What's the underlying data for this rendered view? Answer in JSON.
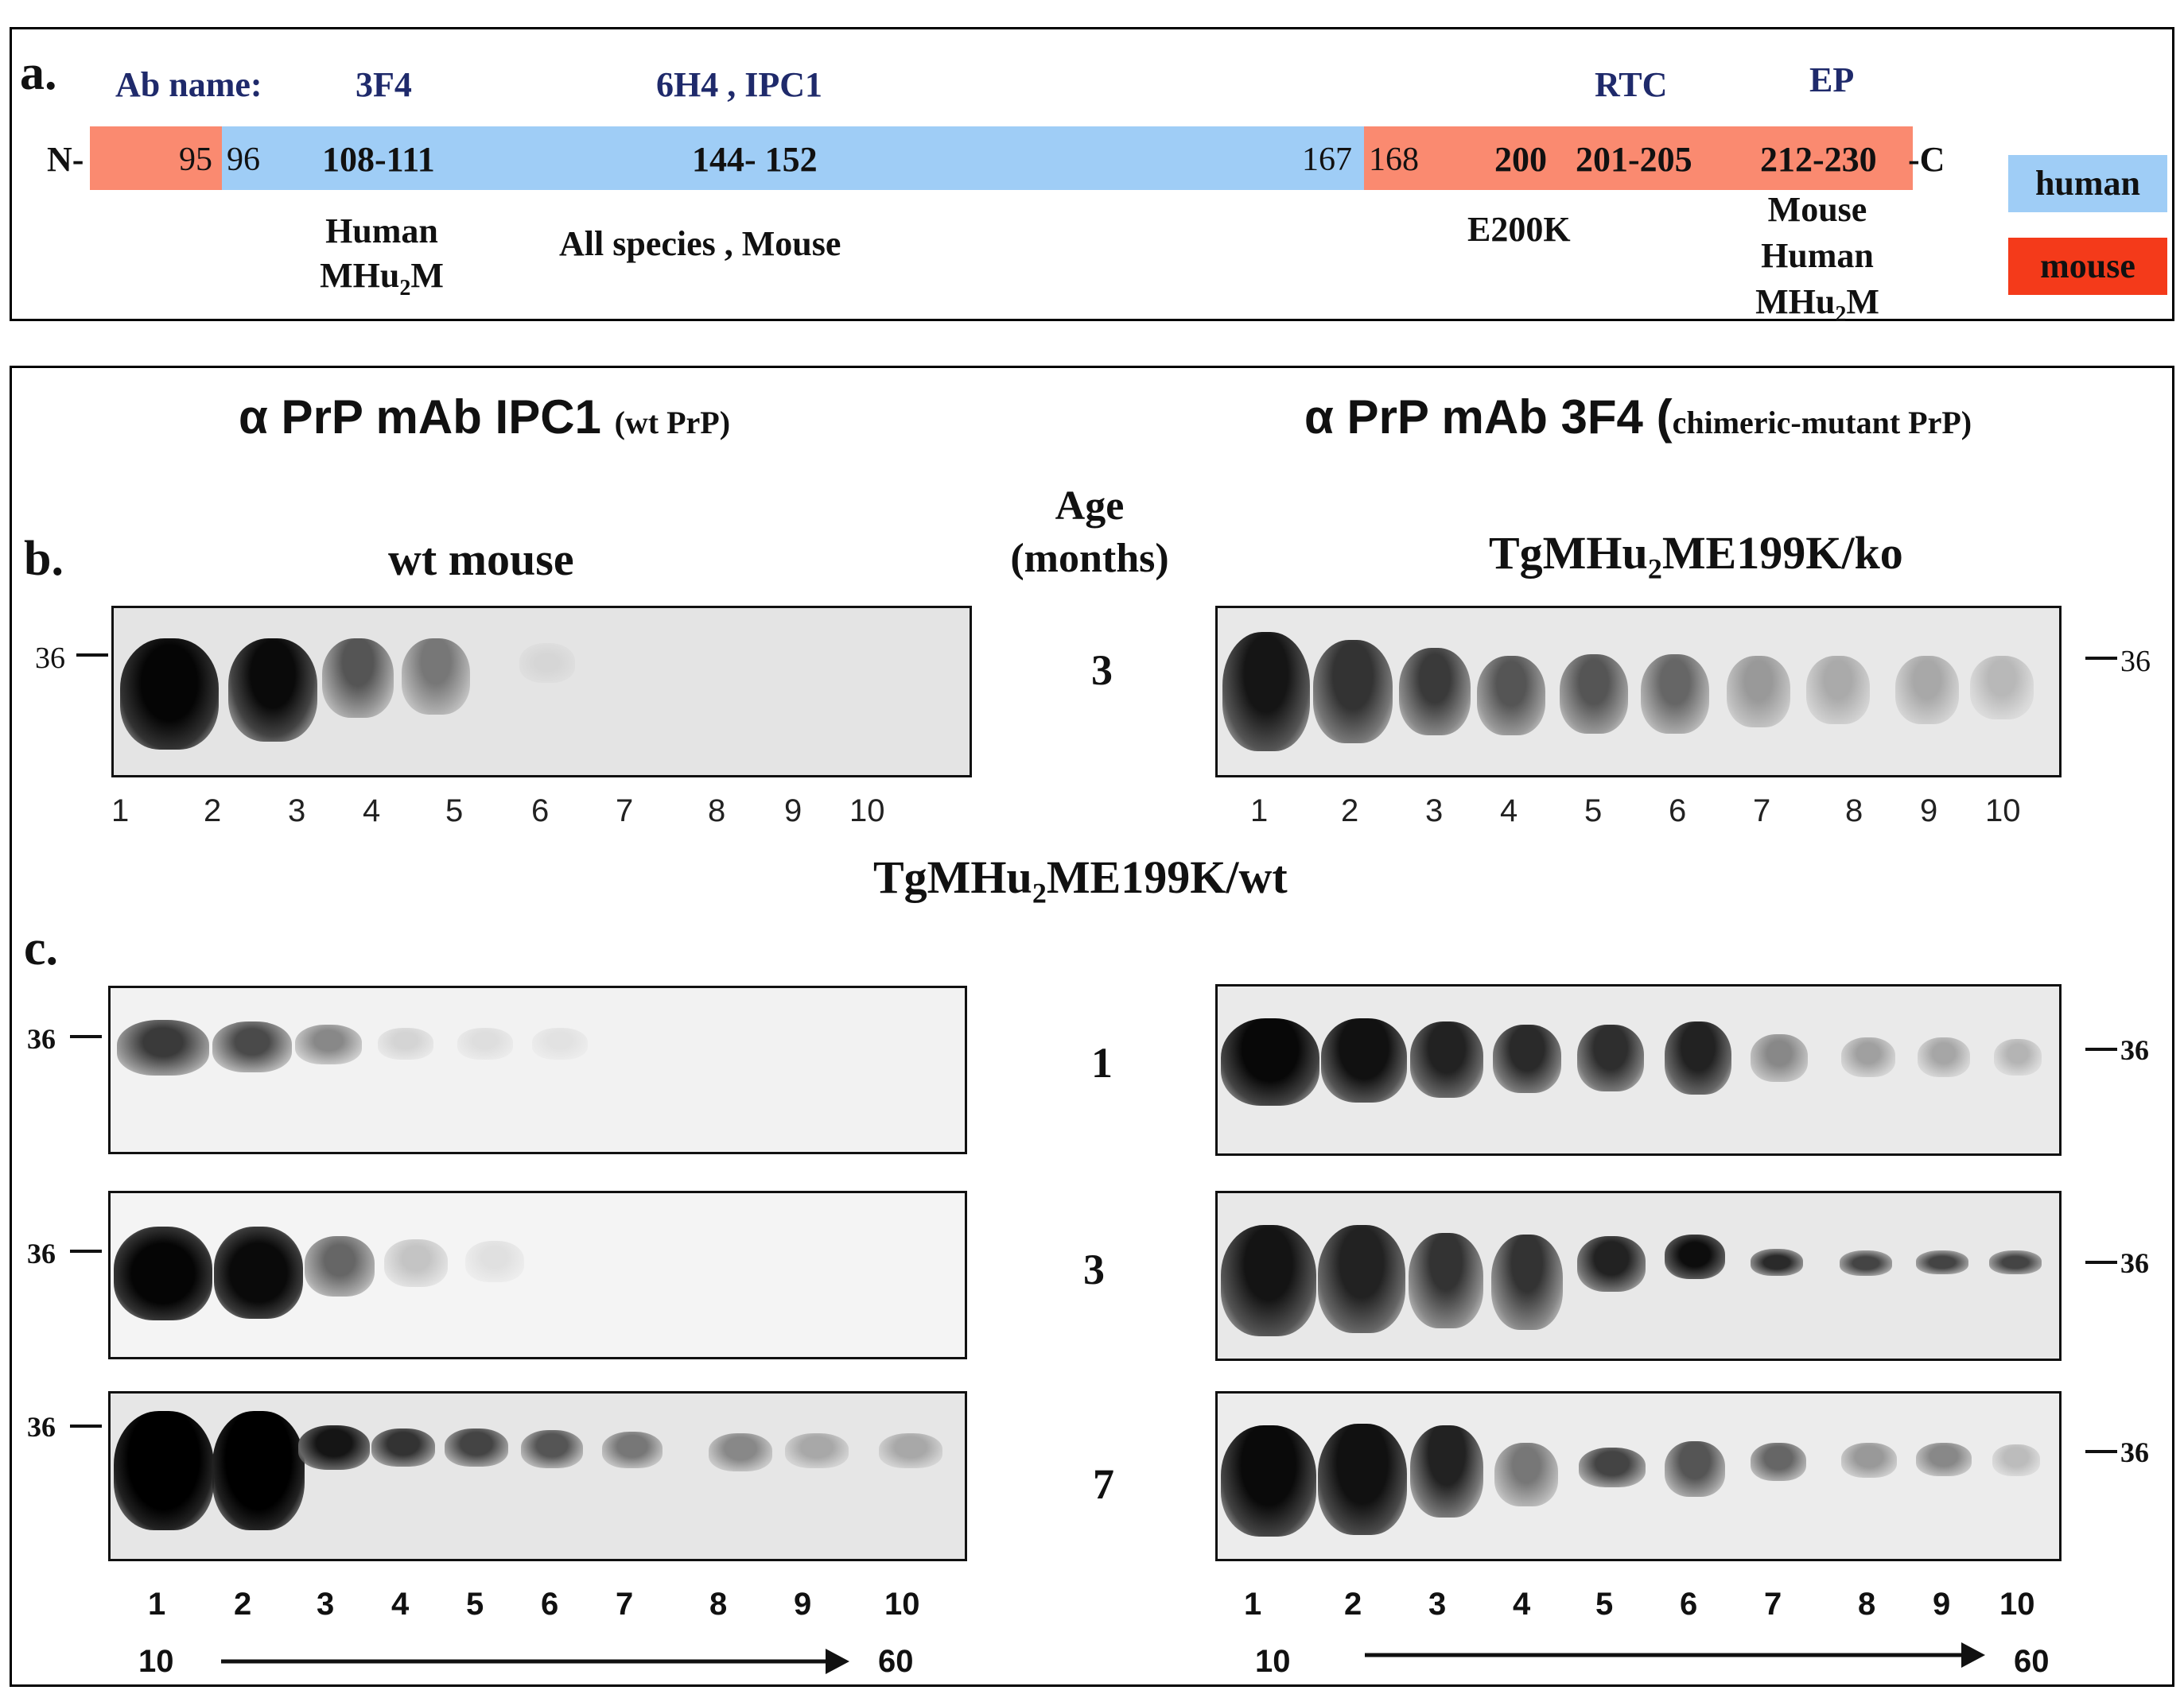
{
  "panel_a": {
    "label": "a.",
    "ab_name_label": "Ab name:",
    "antibodies": [
      "3F4",
      "6H4 , IPC1",
      "RTC",
      "EP"
    ],
    "n_term": "N-",
    "c_term": "-C",
    "positions": [
      "95",
      "96",
      "108-111",
      "144- 152",
      "167",
      "168",
      "200",
      "201-205",
      "212-230"
    ],
    "species_notes": {
      "f3f4_line1": "Human",
      "f3f4_line2": "MHu",
      "f3f4_sub": "2",
      "f3f4_line2_end": "M",
      "ipc1": "All species , Mouse",
      "e200k": "E200K",
      "ep_line1": "Mouse",
      "ep_line2": "Human",
      "ep_line3": "MHu",
      "ep_sub": "2",
      "ep_line3_end": "M"
    },
    "legend": {
      "human": "human",
      "mouse": "mouse"
    },
    "colors": {
      "human": "#9fcdf6",
      "mouse": "#fa8a70",
      "mouse_legend": "#f43a1a",
      "navy": "#1f2a6b"
    }
  },
  "panel_bc": {
    "left_title": "α PrP mAb IPC1",
    "left_title_small": "(wt PrP)",
    "right_title": "α PrP mAb 3F4 (",
    "right_title_small": "chimeric-mutant  PrP)",
    "label_b": "b.",
    "label_c": "c.",
    "wt_mouse": "wt mouse",
    "age_label_1": "Age",
    "age_label_2": "(months)",
    "tg_ko_pre": "TgMHu",
    "tg_ko_sub": "2",
    "tg_ko_post": "ME199K/ko",
    "tg_wt_pre": "TgMHu",
    "tg_wt_sub": "2",
    "tg_wt_post": "ME199K/wt",
    "marker": "36",
    "ages": [
      "3",
      "1",
      "3",
      "7"
    ],
    "lanes": [
      "1",
      "2",
      "3",
      "4",
      "5",
      "6",
      "7",
      "8",
      "9",
      "10"
    ],
    "gradient_start": "10",
    "gradient_end": "60"
  }
}
